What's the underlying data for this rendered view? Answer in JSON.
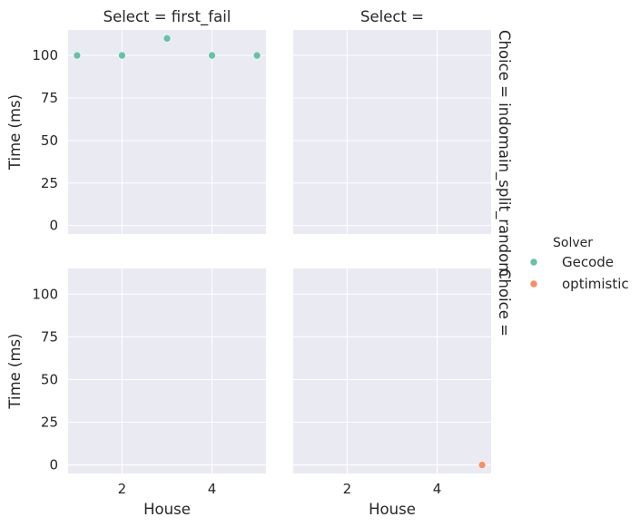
{
  "chart_data": {
    "type": "scatter",
    "x_field": "House",
    "y_field": "Time (ms)",
    "xlim": [
      0.8,
      5.2
    ],
    "ylim": [
      -5,
      115
    ],
    "xticks": [
      2,
      4
    ],
    "yticks": [
      0,
      25,
      50,
      75,
      100
    ],
    "legend": {
      "title": "Solver",
      "placement": "right",
      "entries": [
        {
          "name": "Gecode",
          "color": "#66c2a5"
        },
        {
          "name": "optimistic",
          "color": "#fc8d62"
        }
      ]
    },
    "facets": [
      {
        "title": "Select = first_fail",
        "row_label": "",
        "show_ylabel": true,
        "show_yticks": true,
        "show_xlabel": false,
        "show_xticks": false,
        "series": [
          {
            "name": "Gecode",
            "points": [
              [
                1,
                100
              ],
              [
                2,
                100
              ],
              [
                3,
                110
              ],
              [
                4,
                100
              ],
              [
                5,
                100
              ]
            ]
          }
        ]
      },
      {
        "title": "Select =",
        "row_label": "Choice = indomain_split_random",
        "show_ylabel": false,
        "show_yticks": false,
        "show_xlabel": false,
        "show_xticks": false,
        "series": []
      },
      {
        "title": "",
        "row_label": "",
        "show_ylabel": true,
        "show_yticks": true,
        "show_xlabel": true,
        "show_xticks": true,
        "series": []
      },
      {
        "title": "",
        "row_label": "Choice =",
        "show_ylabel": false,
        "show_yticks": false,
        "show_xlabel": true,
        "show_xticks": true,
        "series": [
          {
            "name": "optimistic",
            "points": [
              [
                5,
                0
              ]
            ]
          }
        ]
      }
    ]
  }
}
